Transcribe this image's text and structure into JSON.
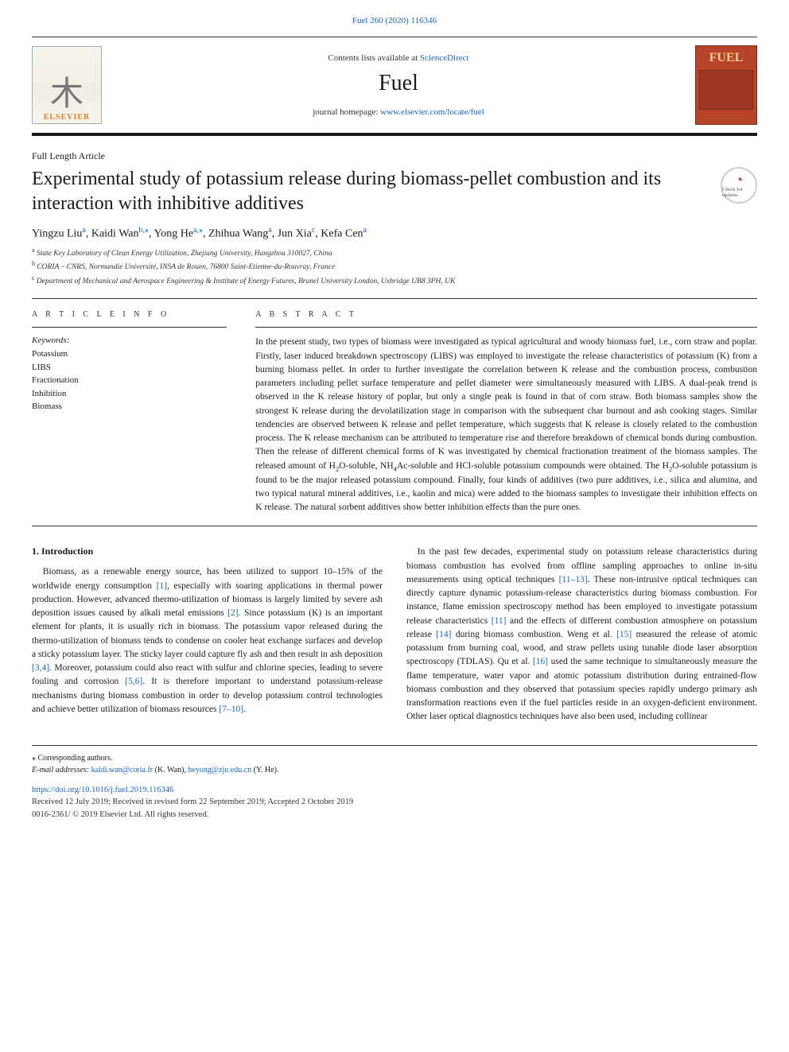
{
  "colors": {
    "link": "#1565c0",
    "journal_cover_bg": "#b8432b",
    "journal_cover_title": "#f2d08a",
    "elsevier_orange": "#e67e22",
    "text": "#1a1a1a",
    "border_dark": "#1a1a1a"
  },
  "header": {
    "top_link": "Fuel 260 (2020) 116346",
    "contents_prefix": "Contents lists available at ",
    "contents_link": "ScienceDirect",
    "journal": "Fuel",
    "homepage_prefix": "journal homepage: ",
    "homepage_url": "www.elsevier.com/locate/fuel",
    "elsevier_name": "ELSEVIER",
    "cover_title": "FUEL"
  },
  "article": {
    "type": "Full Length Article",
    "title": "Experimental study of potassium release during biomass-pellet combustion and its interaction with inhibitive additives",
    "updates_label": "Check for updates",
    "authors_html": "Yingzu Liu<sup>a</sup>, Kaidi Wan<sup>b,⁎</sup>, Yong He<sup>a,⁎</sup>, Zhihua Wang<sup>a</sup>, Jun Xia<sup>c</sup>, Kefa Cen<sup>a</sup>",
    "affiliations": [
      "a State Key Laboratory of Clean Energy Utilization, Zhejiang University, Hangzhou 310027, China",
      "b CORIA – CNRS, Normandie Université, INSA de Rouen, 76800 Saint-Etienne-du-Rouvray, France",
      "c Department of Mechanical and Aerospace Engineering & Institute of Energy Futures, Brunel University London, Uxbridge UB8 3PH, UK"
    ]
  },
  "info": {
    "label": "A R T I C L E  I N F O",
    "keywords_head": "Keywords:",
    "keywords": [
      "Potassium",
      "LIBS",
      "Fractionation",
      "Inhibition",
      "Biomass"
    ]
  },
  "abstract": {
    "label": "A B S T R A C T",
    "text": "In the present study, two types of biomass were investigated as typical agricultural and woody biomass fuel, i.e., corn straw and poplar. Firstly, laser induced breakdown spectroscopy (LIBS) was employed to investigate the release characteristics of potassium (K) from a burning biomass pellet. In order to further investigate the correlation between K release and the combustion process, combustion parameters including pellet surface temperature and pellet diameter were simultaneously measured with LIBS. A dual-peak trend is observed in the K release history of poplar, but only a single peak is found in that of corn straw. Both biomass samples show the strongest K release during the devolatilization stage in comparison with the subsequent char burnout and ash cooking stages. Similar tendencies are observed between K release and pellet temperature, which suggests that K release is closely related to the combustion process. The K release mechanism can be attributed to temperature rise and therefore breakdown of chemical bonds during combustion. Then the release of different chemical forms of K was investigated by chemical fractionation treatment of the biomass samples. The released amount of H2O-soluble, NH4Ac-soluble and HCl-soluble potassium compounds were obtained. The H2O-soluble potassium is found to be the major released potassium compound. Finally, four kinds of additives (two pure additives, i.e., silica and alumina, and two typical natural mineral additives, i.e., kaolin and mica) were added to the biomass samples to investigate their inhibition effects on K release. The natural sorbent additives show better inhibition effects than the pure ones."
  },
  "body": {
    "intro_heading": "1. Introduction",
    "para1": "Biomass, as a renewable energy source, has been utilized to support 10–15% of the worldwide energy consumption [1], especially with soaring applications in thermal power production. However, advanced thermo-utilization of biomass is largely limited by severe ash deposition issues caused by alkali metal emissions [2]. Since potassium (K) is an important element for plants, it is usually rich in biomass. The potassium vapor released during the thermo-utilization of biomass tends to condense on cooler heat exchange surfaces and develop a sticky potassium layer. The sticky layer could capture fly ash and then result in ash deposition [3,4]. Moreover, potassium could also react with sulfur and chlorine species, leading to severe fouling and corrosion [5,6]. It is therefore important to understand potassium-release mechanisms during biomass combustion in order to develop potassium control technologies and achieve better utilization of biomass resources [7–10].",
    "para2": "In the past few decades, experimental study on potassium release characteristics during biomass combustion has evolved from offline sampling approaches to online in-situ measurements using optical techniques [11–13]. These non-intrusive optical techniques can directly capture dynamic potassium-release characteristics during biomass combustion. For instance, flame emission spectroscopy method has been employed to investigate potassium release characteristics [11] and the effects of different combustion atmosphere on potassium release [14] during biomass combustion. Weng et al. [15] measured the release of atomic potassium from burning coal, wood, and straw pellets using tunable diode laser absorption spectroscopy (TDLAS). Qu et al. [16] used the same technique to simultaneously measure the flame temperature, water vapor and atomic potassium distribution during entrained-flow biomass combustion and they observed that potassium species rapidly undergo primary ash transformation reactions even if the fuel particles reside in an oxygen-deficient environment. Other laser optical diagnostics techniques have also been used, including collinear"
  },
  "footer": {
    "corr": "⁎ Corresponding authors.",
    "emails_prefix": "E-mail addresses: ",
    "email1": "kaidi.wan@coria.fr",
    "email1_name": " (K. Wan), ",
    "email2": "heyong@zju.edu.cn",
    "email2_name": " (Y. He).",
    "doi": "https://doi.org/10.1016/j.fuel.2019.116346",
    "received": "Received 12 July 2019; Received in revised form 22 September 2019; Accepted 2 October 2019",
    "copyright": "0016-2361/ © 2019 Elsevier Ltd. All rights reserved."
  }
}
